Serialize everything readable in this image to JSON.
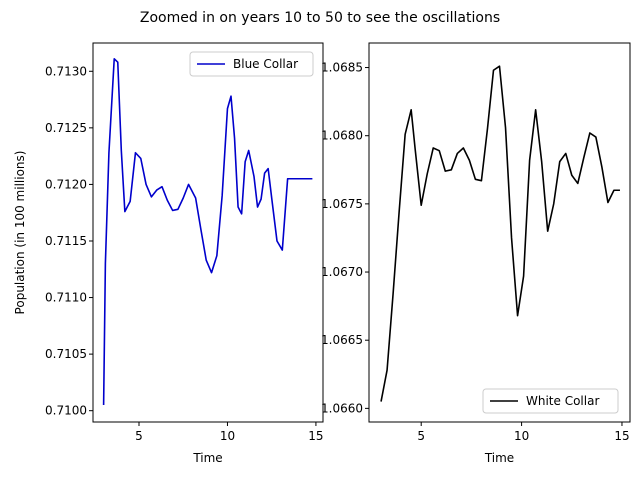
{
  "figure": {
    "title": "Zoomed in on years 10 to 50 to see the oscillations"
  },
  "chart_data": [
    {
      "type": "line",
      "title": "",
      "xlabel": "Time",
      "ylabel": "Population (in 100 millions)",
      "xlim": [
        2.4,
        15.4
      ],
      "ylim": [
        0.7099,
        0.71325
      ],
      "xticks": [
        5,
        10,
        15
      ],
      "yticks": [
        0.71,
        0.7105,
        0.711,
        0.7115,
        0.712,
        0.7125,
        0.713
      ],
      "ytick_labels": [
        "0.7100",
        "0.7105",
        "0.7110",
        "0.7115",
        "0.7120",
        "0.7125",
        "0.7130"
      ],
      "xtick_labels": [
        "5",
        "10",
        "15"
      ],
      "legend_position": "upper right",
      "grid": false,
      "series": [
        {
          "name": "Blue Collar",
          "color": "#0000cc",
          "x": [
            3.0,
            3.1,
            3.3,
            3.6,
            3.8,
            4.0,
            4.2,
            4.5,
            4.8,
            5.1,
            5.4,
            5.7,
            6.0,
            6.3,
            6.6,
            6.9,
            7.2,
            7.5,
            7.8,
            8.2,
            8.5,
            8.8,
            9.1,
            9.4,
            9.7,
            10.0,
            10.2,
            10.4,
            10.6,
            10.8,
            11.0,
            11.2,
            11.5,
            11.7,
            11.9,
            12.1,
            12.3,
            12.5,
            12.8,
            13.1,
            13.4,
            13.7,
            14.0,
            14.2,
            14.5,
            14.8
          ],
          "values": [
            0.71005,
            0.7113,
            0.71228,
            0.71311,
            0.71308,
            0.7123,
            0.71176,
            0.71185,
            0.71228,
            0.71223,
            0.712,
            0.71189,
            0.71195,
            0.71198,
            0.71186,
            0.71177,
            0.71178,
            0.71188,
            0.712,
            0.71188,
            0.7116,
            0.71133,
            0.71122,
            0.71137,
            0.7119,
            0.71267,
            0.71278,
            0.71241,
            0.7118,
            0.71174,
            0.7122,
            0.7123,
            0.71207,
            0.7118,
            0.71187,
            0.7121,
            0.71214,
            0.71188,
            0.7115,
            0.71142,
            0.71205,
            0.71205,
            0.71205,
            0.71205,
            0.71205,
            0.71205
          ]
        }
      ]
    },
    {
      "type": "line",
      "title": "",
      "xlabel": "Time",
      "ylabel": "",
      "xlim": [
        2.4,
        15.4
      ],
      "ylim": [
        1.0659,
        1.06868
      ],
      "xticks": [
        5,
        10,
        15
      ],
      "yticks": [
        1.066,
        1.0665,
        1.067,
        1.0675,
        1.068,
        1.0685
      ],
      "ytick_labels": [
        "1.0660",
        "1.0665",
        "1.0670",
        "1.0675",
        "1.0680",
        "1.0685"
      ],
      "xtick_labels": [
        "5",
        "10",
        "15"
      ],
      "legend_position": "lower right",
      "grid": false,
      "series": [
        {
          "name": "White Collar",
          "color": "#000000",
          "x": [
            3.0,
            3.3,
            3.6,
            3.9,
            4.2,
            4.5,
            4.7,
            5.0,
            5.3,
            5.6,
            5.9,
            6.2,
            6.5,
            6.8,
            7.1,
            7.4,
            7.7,
            8.0,
            8.3,
            8.6,
            8.9,
            9.2,
            9.5,
            9.8,
            10.1,
            10.4,
            10.7,
            11.0,
            11.3,
            11.6,
            11.9,
            12.2,
            12.5,
            12.8,
            13.1,
            13.4,
            13.7,
            14.0,
            14.3,
            14.6,
            14.9
          ],
          "values": [
            1.06605,
            1.06628,
            1.06684,
            1.06744,
            1.06801,
            1.06819,
            1.0679,
            1.06749,
            1.06772,
            1.06791,
            1.06789,
            1.06774,
            1.06775,
            1.06787,
            1.06791,
            1.06782,
            1.06768,
            1.06767,
            1.06805,
            1.06848,
            1.06851,
            1.06806,
            1.06725,
            1.06668,
            1.06697,
            1.06782,
            1.06819,
            1.06781,
            1.0673,
            1.0675,
            1.06781,
            1.06787,
            1.06771,
            1.06765,
            1.06784,
            1.06802,
            1.06799,
            1.06777,
            1.06751,
            1.0676,
            1.0676
          ]
        }
      ]
    }
  ]
}
